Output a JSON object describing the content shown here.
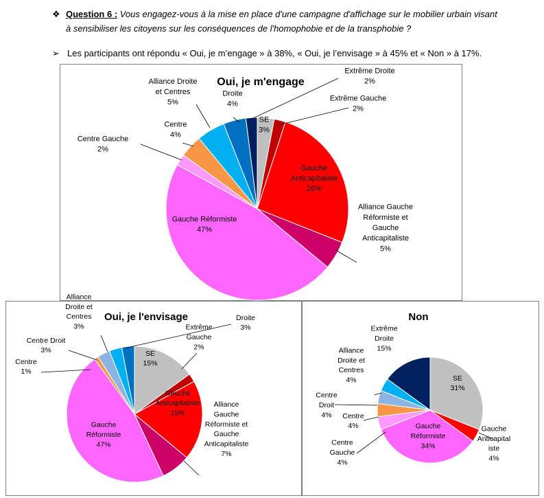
{
  "question": {
    "bullet_icon": "diamond-bullet-icon",
    "label": "Question 6 :",
    "line1": "Vous engagez-vous à la mise en place d'une campagne d'affichage sur le mobilier urbain visant",
    "line2": "à sensibiliser les citoyens sur les conséquences de l'homophobie et de la transphobie ?"
  },
  "answer": {
    "arrow_icon": "arrow-bullet-icon",
    "text": "Les participants ont répondu « Oui, je m’engage » à 38%, « Oui, je l’envisage » à 45% et « Non » à 17%."
  },
  "chart_data": [
    {
      "type": "pie",
      "title": "Oui, je m'engage",
      "labels": [
        "SE",
        "Extrême Gauche",
        "Gauche Anticapitaliste",
        "Alliance Gauche Réformiste et Gauche Anticapitaliste",
        "Gauche Réformiste",
        "Centre Gauche",
        "Centre",
        "Alliance Droite et Centres",
        "Droite",
        "Extrême Droite"
      ],
      "display_labels": [
        [
          "SE"
        ],
        [
          "Extrême Gauche"
        ],
        [
          "Gauche",
          "Anticapitaliste"
        ],
        [
          "Alliance Gauche",
          "Réformiste et",
          "Gauche",
          "Anticapitaliste"
        ],
        [
          "Gauche Réformiste"
        ],
        [
          "Centre Gauche"
        ],
        [
          "Centre"
        ],
        [
          "Alliance Droite",
          "et Centres"
        ],
        [
          "Droite"
        ],
        [
          "Extrême Droite"
        ]
      ],
      "values": [
        3,
        2,
        26,
        5,
        47,
        2,
        4,
        5,
        4,
        2
      ],
      "value_labels": [
        "3%",
        "2%",
        "26%",
        "5%",
        "47%",
        "2%",
        "4%",
        "5%",
        "4%",
        "2%"
      ],
      "colors": [
        "#c0c0c0",
        "#c00000",
        "#ff0000",
        "#cc0066",
        "#ff66ff",
        "#ff99ff",
        "#f79646",
        "#00b0f0",
        "#0070c0",
        "#002060"
      ],
      "legend": "none"
    },
    {
      "type": "pie",
      "title": "Oui, je l'envisage",
      "labels": [
        "SE",
        "Extrême Gauche",
        "Gauche Anticapitaliste",
        "Alliance Gauche Réformiste et Gauche Anticapitaliste",
        "Gauche Réformiste",
        "Centre",
        "Centre Droit",
        "Alliance Droite et Centres",
        "Droite"
      ],
      "display_labels": [
        [
          "SE"
        ],
        [
          "Extrême",
          "Gauche"
        ],
        [
          "Gauche",
          "Anticapitaliste"
        ],
        [
          "Alliance",
          "Gauche",
          "Réformiste et",
          "Gauche",
          "Anticapitaliste"
        ],
        [
          "Gauche",
          "Réformiste"
        ],
        [
          "Centre"
        ],
        [
          "Centre Droit"
        ],
        [
          "Alliance",
          "Droite et",
          "Centres"
        ],
        [
          "Droite"
        ]
      ],
      "values": [
        15,
        2,
        19,
        7,
        47,
        1,
        3,
        3,
        3
      ],
      "value_labels": [
        "15%",
        "2%",
        "19%",
        "7%",
        "47%",
        "1%",
        "3%",
        "3%",
        "3%"
      ],
      "colors": [
        "#c0c0c0",
        "#c00000",
        "#ff0000",
        "#cc0066",
        "#ff66ff",
        "#f79646",
        "#8db3e2",
        "#00b0f0",
        "#0070c0"
      ],
      "legend": "none"
    },
    {
      "type": "pie",
      "title": "Non",
      "labels": [
        "SE",
        "Gauche Anticapitaliste",
        "Gauche Réformiste",
        "Centre Gauche",
        "Centre",
        "Centre Droit",
        "Alliance Droite et Centres",
        "Extrême Droite"
      ],
      "display_labels": [
        [
          "SE"
        ],
        [
          "Gauche",
          "Anticapital",
          "iste"
        ],
        [
          "Gauche",
          "Réformiste"
        ],
        [
          "Centre",
          "Gauche"
        ],
        [
          "Centre"
        ],
        [
          "Centre",
          "Droit"
        ],
        [
          "Alliance",
          "Droite et",
          "Centres"
        ],
        [
          "Extrême",
          "Droite"
        ]
      ],
      "values": [
        31,
        4,
        34,
        4,
        4,
        4,
        4,
        15
      ],
      "value_labels": [
        "31%",
        "4%",
        "34%",
        "4%",
        "4%",
        "4%",
        "4%",
        "15%"
      ],
      "colors": [
        "#c0c0c0",
        "#ff0000",
        "#ff66ff",
        "#ff99ff",
        "#f79646",
        "#8db3e2",
        "#00b0f0",
        "#002060"
      ],
      "legend": "none"
    }
  ]
}
